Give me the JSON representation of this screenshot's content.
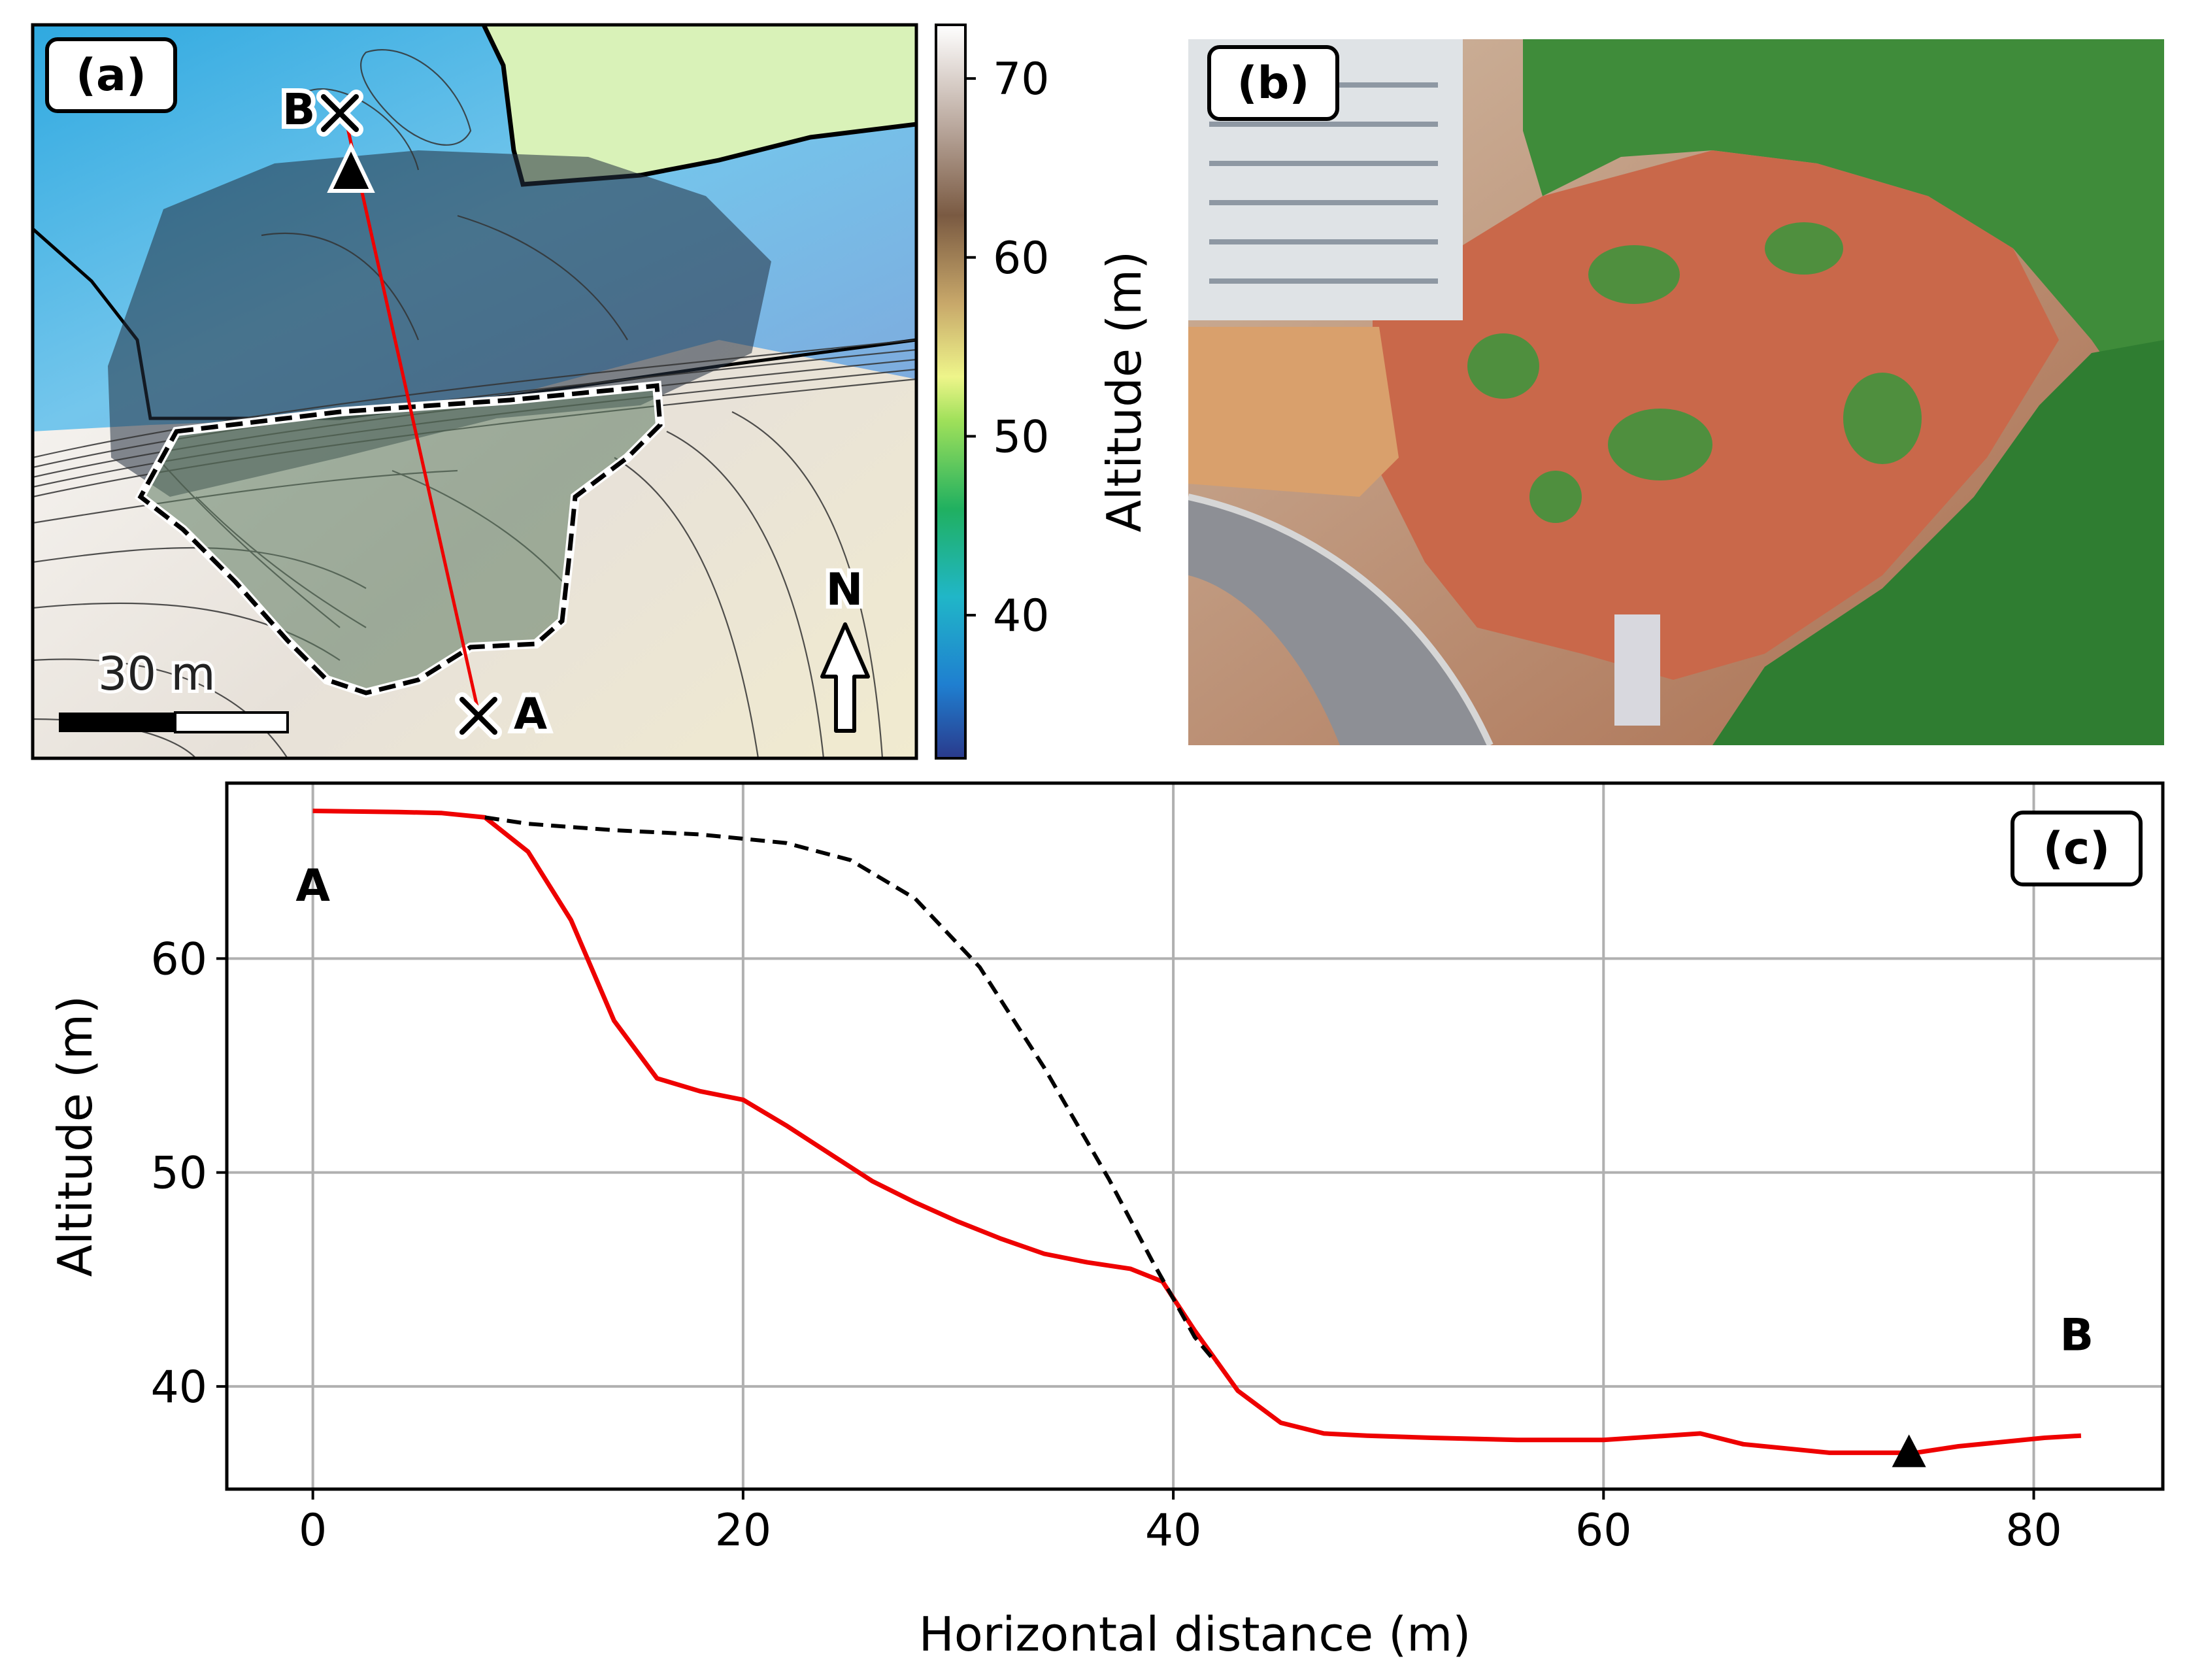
{
  "panel_a": {
    "label": "(a)",
    "point_a": "A",
    "point_b": "B",
    "scale_label": "30 m",
    "north_label": "N",
    "colorbar": {
      "label": "Altitude (m)",
      "ticks": [
        70,
        60,
        50,
        40
      ],
      "range": [
        32,
        73
      ]
    }
  },
  "panel_b": {
    "label": "(b)"
  },
  "chart_data": {
    "type": "line",
    "label": "(c)",
    "xlabel": "Horizontal distance (m)",
    "ylabel": "Altitude (m)",
    "xlim": [
      -4,
      86
    ],
    "ylim": [
      35.2,
      68.2
    ],
    "xticks": [
      0,
      20,
      40,
      60,
      80
    ],
    "yticks": [
      40,
      50,
      60
    ],
    "grid": true,
    "series": [
      {
        "color": "#ee0000",
        "style": "solid",
        "x": [
          0,
          4,
          6,
          8,
          10,
          12,
          14,
          16,
          18,
          20,
          22,
          24,
          26,
          28,
          30,
          32,
          34,
          36,
          38,
          39.5,
          41,
          43,
          45,
          47,
          49,
          52,
          56,
          60,
          64.5,
          66.5,
          68.5,
          70.5,
          72.5,
          74.5,
          76.5,
          78.5,
          80.5,
          82.2
        ],
        "y": [
          66.9,
          66.85,
          66.8,
          66.6,
          65.0,
          61.8,
          57.1,
          54.4,
          53.8,
          53.4,
          52.2,
          50.9,
          49.6,
          48.6,
          47.7,
          46.9,
          46.2,
          45.8,
          45.5,
          44.9,
          42.6,
          39.8,
          38.3,
          37.8,
          37.7,
          37.6,
          37.5,
          37.5,
          37.8,
          37.3,
          37.1,
          36.9,
          36.9,
          36.9,
          37.2,
          37.4,
          37.6,
          37.7
        ]
      },
      {
        "color": "#000000",
        "style": "dashed",
        "x": [
          8,
          10,
          14,
          18,
          22,
          25,
          28,
          31,
          34,
          37,
          39,
          41,
          42
        ],
        "y": [
          66.6,
          66.3,
          66.0,
          65.8,
          65.4,
          64.6,
          62.8,
          59.6,
          54.9,
          49.7,
          45.9,
          42.3,
          41.1
        ]
      }
    ],
    "annotations": [
      {
        "text": "A",
        "x": 0,
        "y": 62.7
      },
      {
        "text": "B",
        "x": 82,
        "y": 41.7
      }
    ],
    "marker": {
      "shape": "triangle",
      "x": 74.2,
      "y": 36.9
    }
  }
}
